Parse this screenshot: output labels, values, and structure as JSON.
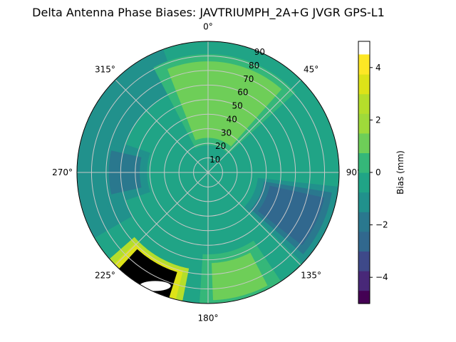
{
  "title": "Delta Antenna Phase Biases: JAVTRIUMPH_2A+G JVGR GPS-L1",
  "chart_data": {
    "type": "polar-contour",
    "azimuth_labels": [
      "0°",
      "45°",
      "90°",
      "135°",
      "180°",
      "225°",
      "270°",
      "315°"
    ],
    "zenith_labels": [
      "10",
      "20",
      "30",
      "40",
      "50",
      "60",
      "70",
      "80",
      "90"
    ],
    "grid": true,
    "colorbar": {
      "label": "Bias (mm)",
      "range": [
        -5,
        5
      ],
      "ticks": [
        "−4",
        "−2",
        "0",
        "2",
        "4"
      ],
      "tick_values": [
        -4,
        -2,
        0,
        2,
        4
      ],
      "levels": [
        -5,
        -4.5,
        -3.75,
        -3,
        -2.25,
        -1.5,
        -0.75,
        0,
        0.75,
        1.5,
        2.25,
        3,
        3.75,
        4.5,
        5
      ],
      "colors": [
        "#440154",
        "#482878",
        "#3e4989",
        "#31688e",
        "#2a788e",
        "#21918c",
        "#20a486",
        "#35b779",
        "#6ece58",
        "#9fda3a",
        "#b5de2b",
        "#dde318",
        "#fde725"
      ]
    },
    "regions": [
      {
        "name": "north-plus",
        "az_from": 340,
        "az_to": 40,
        "zen_from": 25,
        "zen_to": 75,
        "bias": 1.2
      },
      {
        "name": "east-minus",
        "az_from": 100,
        "az_to": 130,
        "zen_from": 40,
        "zen_to": 85,
        "bias": -2.5
      },
      {
        "name": "west-minus",
        "az_from": 255,
        "az_to": 285,
        "zen_from": 45,
        "zen_to": 70,
        "bias": -1.8
      },
      {
        "name": "south-plus",
        "az_from": 195,
        "az_to": 225,
        "zen_from": 70,
        "zen_to": 92,
        "bias": 4.6
      },
      {
        "name": "south-east-low",
        "az_from": 150,
        "az_to": 180,
        "zen_from": 60,
        "zen_to": 90,
        "bias": 0.8
      }
    ]
  }
}
